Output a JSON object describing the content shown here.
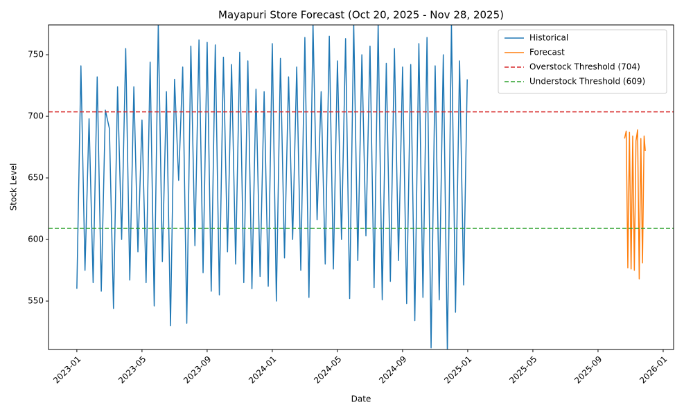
{
  "chart_data": {
    "type": "line",
    "title": "Mayapuri Store Forecast (Oct 20, 2025 - Nov 28, 2025)",
    "x_label": "Date",
    "y_label": "Stock Level",
    "xlim": [
      -1.74,
      36.64
    ],
    "xticks": [
      {
        "value": 0,
        "label": "2023-01"
      },
      {
        "value": 4,
        "label": "2023-05"
      },
      {
        "value": 8,
        "label": "2023-09"
      },
      {
        "value": 12,
        "label": "2024-01"
      },
      {
        "value": 16,
        "label": "2024-05"
      },
      {
        "value": 20,
        "label": "2024-09"
      },
      {
        "value": 24,
        "label": "2025-01"
      },
      {
        "value": 28,
        "label": "2025-05"
      },
      {
        "value": 32,
        "label": "2025-09"
      },
      {
        "value": 36,
        "label": "2026-01"
      }
    ],
    "ylim": [
      510.7,
      774.2
    ],
    "yticks": [
      550,
      600,
      650,
      700,
      750
    ],
    "legend": "upper right",
    "series": [
      {
        "name": "Historical",
        "color": "#1f77b4",
        "x": [
          0,
          0.25,
          0.5,
          0.75,
          1,
          1.25,
          1.5,
          1.75,
          2,
          2.25,
          2.5,
          2.75,
          3,
          3.25,
          3.5,
          3.75,
          4,
          4.25,
          4.5,
          4.75,
          5,
          5.25,
          5.5,
          5.75,
          6,
          6.25,
          6.5,
          6.75,
          7,
          7.25,
          7.5,
          7.75,
          8,
          8.25,
          8.5,
          8.75,
          9,
          9.25,
          9.5,
          9.75,
          10,
          10.25,
          10.5,
          10.75,
          11,
          11.25,
          11.5,
          11.75,
          12,
          12.25,
          12.5,
          12.75,
          13,
          13.25,
          13.5,
          13.75,
          14,
          14.25,
          14.5,
          14.75,
          15,
          15.25,
          15.5,
          15.75,
          16,
          16.25,
          16.5,
          16.75,
          17,
          17.25,
          17.5,
          17.75,
          18,
          18.25,
          18.5,
          18.75,
          19,
          19.25,
          19.5,
          19.75,
          20,
          20.25,
          20.5,
          20.75,
          21,
          21.25,
          21.5,
          21.75,
          22,
          22.25,
          22.5,
          22.75,
          23,
          23.25,
          23.5,
          23.75,
          23.97
        ],
        "values": [
          560,
          741,
          575,
          698,
          565,
          732,
          558,
          705,
          690,
          544,
          724,
          600,
          755,
          567,
          724,
          590,
          697,
          565,
          744,
          546,
          775,
          582,
          720,
          530,
          730,
          648,
          740,
          532,
          757,
          595,
          762,
          573,
          760,
          558,
          758,
          555,
          748,
          590,
          742,
          580,
          752,
          565,
          745,
          560,
          722,
          570,
          720,
          562,
          759,
          550,
          747,
          585,
          732,
          600,
          740,
          575,
          764,
          553,
          775,
          616,
          720,
          580,
          765,
          576,
          745,
          600,
          763,
          552,
          775,
          583,
          750,
          603,
          757,
          561,
          775,
          551,
          743,
          566,
          755,
          583,
          740,
          548,
          742,
          534,
          759,
          553,
          764,
          512,
          741,
          551,
          750,
          508,
          775,
          541,
          745,
          563,
          730
        ]
      },
      {
        "name": "Forecast",
        "color": "#ff7f0e",
        "x": [
          33.63,
          33.73,
          33.83,
          33.93,
          34.03,
          34.13,
          34.23,
          34.33,
          34.43,
          34.53,
          34.63,
          34.73,
          34.83,
          34.9
        ],
        "values": [
          682,
          688,
          577,
          687,
          576,
          684,
          575,
          680,
          689,
          568,
          682,
          581,
          684,
          672
        ]
      }
    ],
    "thresholds": [
      {
        "name": "Overstock Threshold (704)",
        "value": 703.6,
        "color": "#d62728"
      },
      {
        "name": "Understock Threshold (609)",
        "value": 609,
        "color": "#2ca02c"
      }
    ]
  }
}
